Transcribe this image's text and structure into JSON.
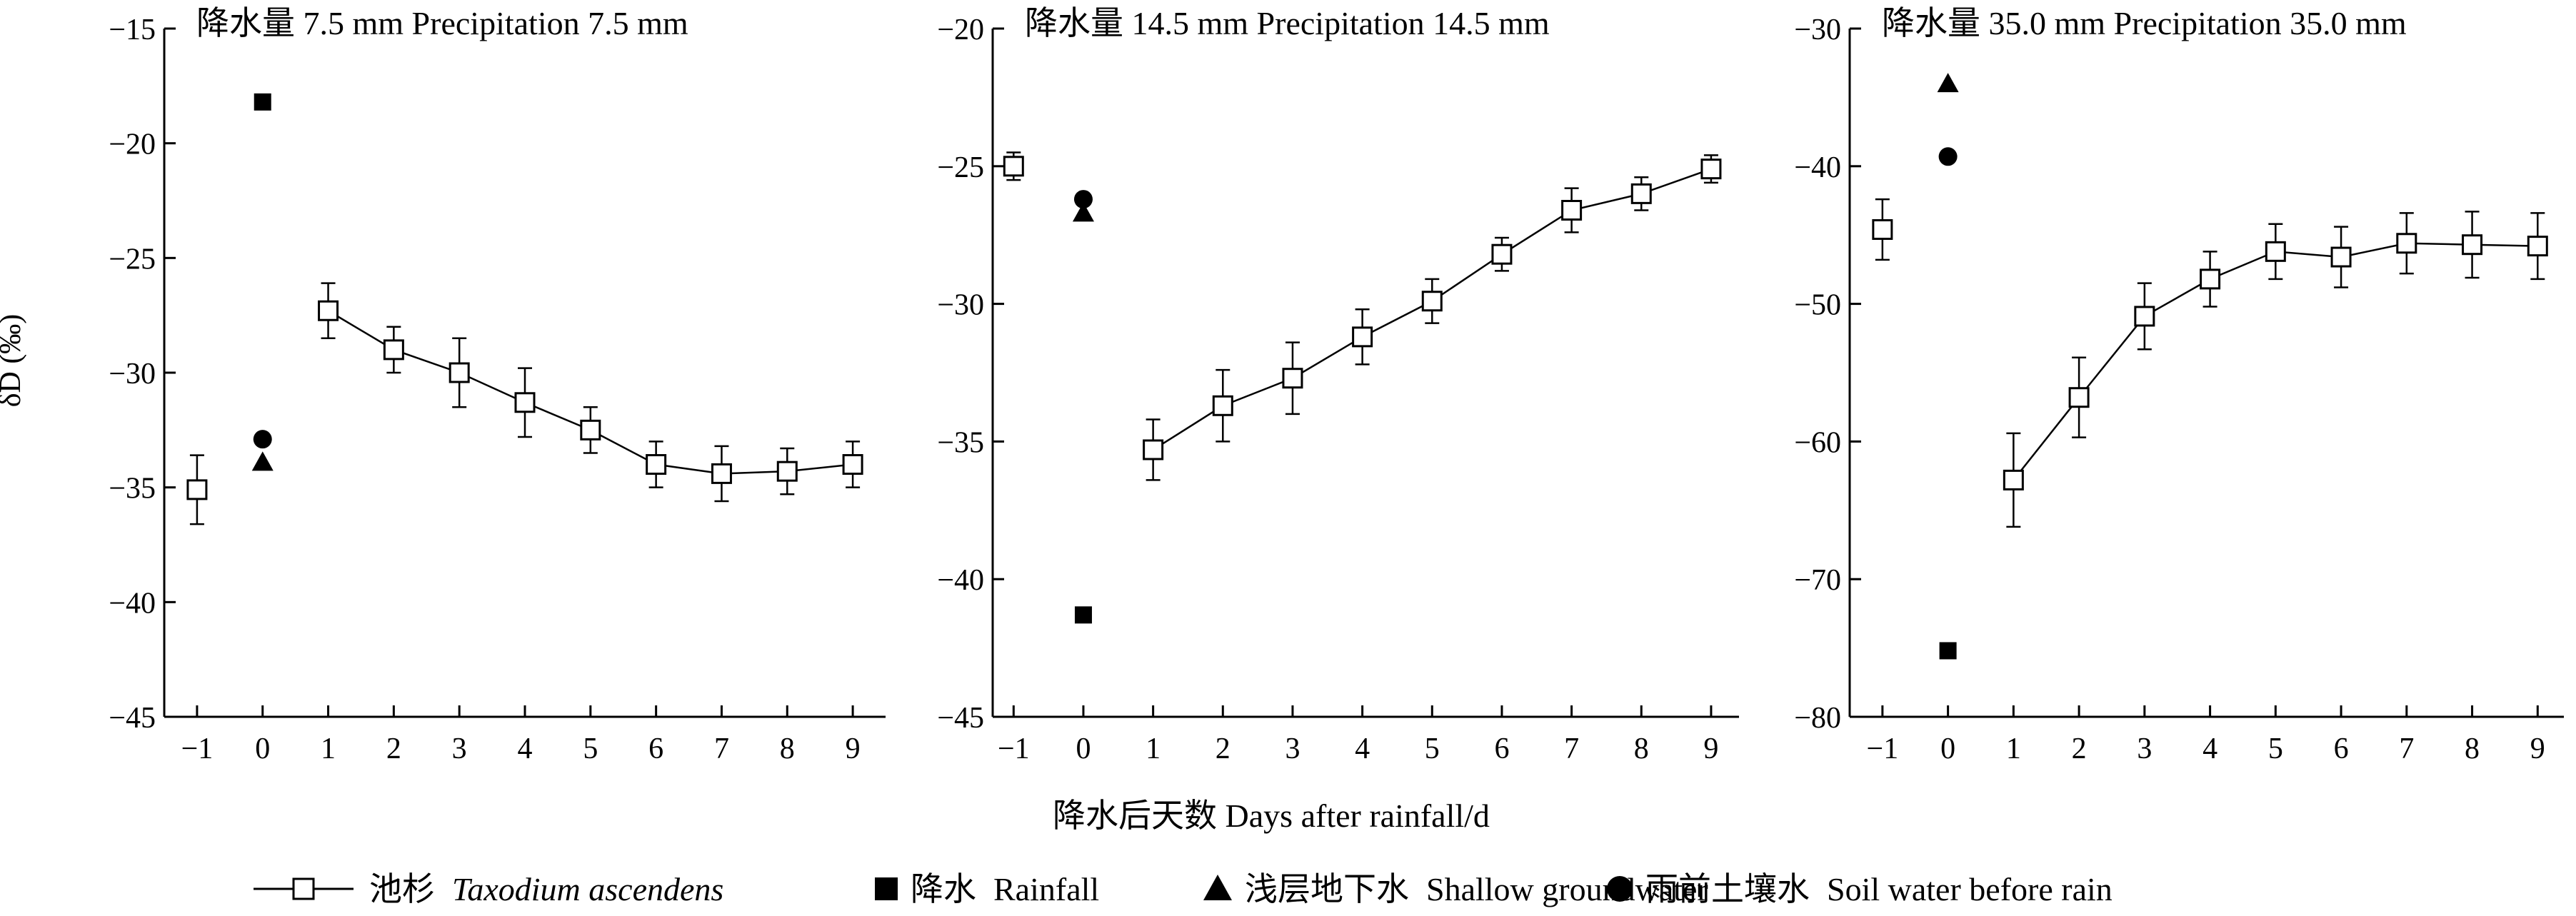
{
  "figure": {
    "ylabel": "δD (‰)",
    "xlabel": "降水后天数 Days after rainfall/d",
    "legend": [
      {
        "marker": "line-open-square",
        "cn": "池杉",
        "en": "Taxodium ascendens",
        "italic": true
      },
      {
        "marker": "filled-square",
        "cn": "降水",
        "en": "Rainfall",
        "italic": false
      },
      {
        "marker": "filled-triangle",
        "cn": "浅层地下水",
        "en": "Shallow groundwater",
        "italic": false
      },
      {
        "marker": "filled-circle",
        "cn": "雨前土壤水",
        "en": "Soil water before rain",
        "italic": false
      }
    ]
  },
  "chart_data": [
    {
      "type": "line",
      "title": "降水量 7.5 mm Precipitation 7.5 mm",
      "xlim": [
        -1.5,
        9.5
      ],
      "ylim": [
        -45,
        -15
      ],
      "x_ticks": [
        -1,
        0,
        1,
        2,
        3,
        4,
        5,
        6,
        7,
        8,
        9
      ],
      "y_ticks": [
        -15,
        -20,
        -25,
        -30,
        -35,
        -40,
        -45
      ],
      "taxodium": {
        "pre_rain": {
          "x": -1,
          "y": -35.1,
          "err": 1.5
        },
        "x": [
          1,
          2,
          3,
          4,
          5,
          6,
          7,
          8,
          9
        ],
        "y": [
          -27.3,
          -29.0,
          -30.0,
          -31.3,
          -32.5,
          -34.0,
          -34.4,
          -34.3,
          -34.0
        ],
        "err": [
          1.2,
          1.0,
          1.5,
          1.5,
          1.0,
          1.0,
          1.2,
          1.0,
          1.0
        ]
      },
      "rainfall": {
        "x": 0,
        "y": -18.2
      },
      "shallow_groundwater": {
        "x": 0,
        "y": -33.9
      },
      "soil_water_before_rain": {
        "x": 0,
        "y": -32.9
      }
    },
    {
      "type": "line",
      "title": "降水量 14.5 mm Precipitation 14.5 mm",
      "xlim": [
        -1.3,
        9.4
      ],
      "ylim": [
        -45,
        -20
      ],
      "x_ticks": [
        -1,
        0,
        1,
        2,
        3,
        4,
        5,
        6,
        7,
        8,
        9
      ],
      "y_ticks": [
        -20,
        -25,
        -30,
        -35,
        -40,
        -45
      ],
      "taxodium": {
        "pre_rain": {
          "x": -1,
          "y": -25.0,
          "err": 0.5
        },
        "x": [
          1,
          2,
          3,
          4,
          5,
          6,
          7,
          8,
          9
        ],
        "y": [
          -35.3,
          -33.7,
          -32.7,
          -31.2,
          -29.9,
          -28.2,
          -26.6,
          -26.0,
          -25.1
        ],
        "err": [
          1.1,
          1.3,
          1.3,
          1.0,
          0.8,
          0.6,
          0.8,
          0.6,
          0.5
        ]
      },
      "rainfall": {
        "x": 0,
        "y": -41.3
      },
      "shallow_groundwater": {
        "x": 0,
        "y": -26.7
      },
      "soil_water_before_rain": {
        "x": 0,
        "y": -26.2
      }
    },
    {
      "type": "line",
      "title": "降水量 35.0 mm Precipitation 35.0 mm",
      "xlim": [
        -1.5,
        9.4
      ],
      "ylim": [
        -80,
        -30
      ],
      "x_ticks": [
        -1,
        0,
        1,
        2,
        3,
        4,
        5,
        6,
        7,
        8,
        9
      ],
      "y_ticks": [
        -30,
        -40,
        -50,
        -60,
        -70,
        -80
      ],
      "taxodium": {
        "pre_rain": {
          "x": -1,
          "y": -44.6,
          "err": 2.2
        },
        "x": [
          1,
          2,
          3,
          4,
          5,
          6,
          7,
          8,
          9
        ],
        "y": [
          -62.8,
          -56.8,
          -50.9,
          -48.2,
          -46.2,
          -46.6,
          -45.6,
          -45.7,
          -45.8
        ],
        "err": [
          3.4,
          2.9,
          2.4,
          2.0,
          2.0,
          2.2,
          2.2,
          2.4,
          2.4
        ]
      },
      "rainfall": {
        "x": 0,
        "y": -75.2
      },
      "shallow_groundwater": {
        "x": 0,
        "y": -34.0
      },
      "soil_water_before_rain": {
        "x": 0,
        "y": -39.3
      }
    }
  ]
}
